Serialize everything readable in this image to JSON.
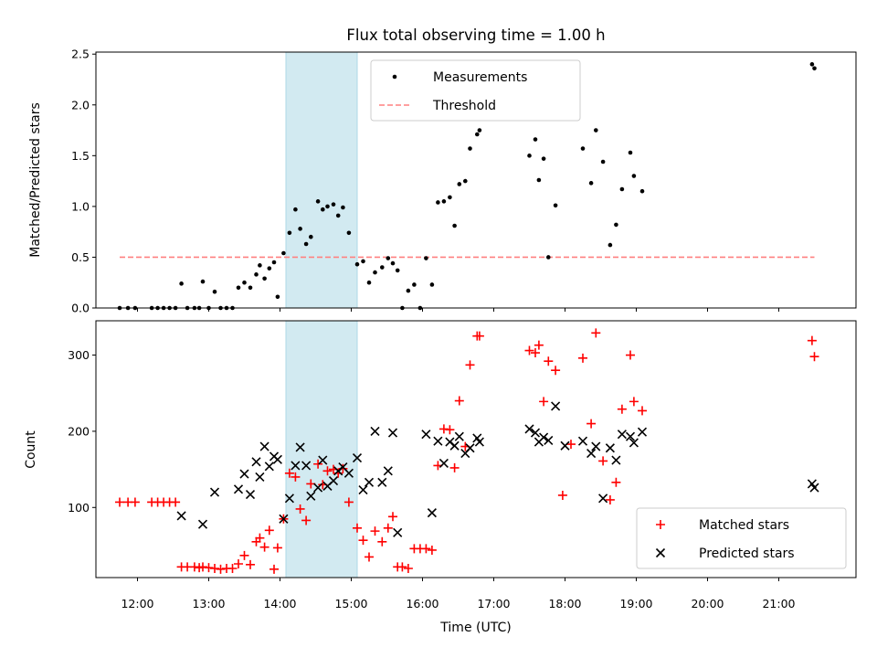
{
  "chart_data": {
    "title": "Flux total observing time = 1.00 h",
    "xlabel": "Time (UTC)",
    "x_ticks": [
      "12:00",
      "13:00",
      "14:00",
      "15:00",
      "16:00",
      "17:00",
      "18:00",
      "19:00",
      "20:00",
      "21:00"
    ],
    "x_range": [
      "11:25",
      "22:05"
    ],
    "highlight_span": [
      "14:05",
      "15:05"
    ],
    "highlight_color": "#add8e6",
    "panels": [
      {
        "type": "scatter",
        "ylabel": "Matched/Predicted stars",
        "ylim": [
          0,
          2.52
        ],
        "y_ticks": [
          "0.0",
          "0.5",
          "1.0",
          "1.5",
          "2.0",
          "2.5"
        ],
        "y_tick_values": [
          0,
          0.5,
          1.0,
          1.5,
          2.0,
          2.5
        ],
        "legend": {
          "placement": "upper center",
          "entries": [
            "Measurements",
            "Threshold"
          ]
        },
        "threshold": {
          "name": "Threshold",
          "y": 0.5,
          "x_range": [
            "11:45",
            "21:30"
          ],
          "color": "#ff8080",
          "style": "dashed"
        },
        "series": [
          {
            "name": "Measurements",
            "marker": "dot",
            "color": "#000000",
            "points": [
              [
                "11:45",
                0
              ],
              [
                "11:52",
                0
              ],
              [
                "11:58",
                0
              ],
              [
                "12:12",
                0
              ],
              [
                "12:17",
                0
              ],
              [
                "12:22",
                0
              ],
              [
                "12:27",
                0
              ],
              [
                "12:32",
                0
              ],
              [
                "12:37",
                0.24
              ],
              [
                "12:42",
                0
              ],
              [
                "12:48",
                0
              ],
              [
                "12:52",
                0
              ],
              [
                "12:55",
                0.26
              ],
              [
                "13:00",
                0
              ],
              [
                "13:05",
                0.16
              ],
              [
                "13:10",
                0
              ],
              [
                "13:15",
                0
              ],
              [
                "13:20",
                0
              ],
              [
                "13:25",
                0.2
              ],
              [
                "13:30",
                0.25
              ],
              [
                "13:35",
                0.2
              ],
              [
                "13:40",
                0.33
              ],
              [
                "13:43",
                0.42
              ],
              [
                "13:47",
                0.29
              ],
              [
                "13:51",
                0.39
              ],
              [
                "13:55",
                0.45
              ],
              [
                "13:58",
                0.11
              ],
              [
                "14:03",
                0.54
              ],
              [
                "14:08",
                0.74
              ],
              [
                "14:13",
                0.97
              ],
              [
                "14:17",
                0.78
              ],
              [
                "14:22",
                0.63
              ],
              [
                "14:26",
                0.7
              ],
              [
                "14:32",
                1.05
              ],
              [
                "14:36",
                0.97
              ],
              [
                "14:40",
                1.0
              ],
              [
                "14:45",
                1.02
              ],
              [
                "14:49",
                0.91
              ],
              [
                "14:53",
                0.99
              ],
              [
                "14:58",
                0.74
              ],
              [
                "15:05",
                0.43
              ],
              [
                "15:10",
                0.46
              ],
              [
                "15:15",
                0.25
              ],
              [
                "15:20",
                0.35
              ],
              [
                "15:26",
                0.4
              ],
              [
                "15:31",
                0.49
              ],
              [
                "15:35",
                0.44
              ],
              [
                "15:39",
                0.37
              ],
              [
                "15:43",
                0
              ],
              [
                "15:48",
                0.17
              ],
              [
                "15:53",
                0.23
              ],
              [
                "15:58",
                0
              ],
              [
                "16:03",
                0.49
              ],
              [
                "16:08",
                0.23
              ],
              [
                "16:13",
                1.04
              ],
              [
                "16:18",
                1.05
              ],
              [
                "16:23",
                1.09
              ],
              [
                "16:27",
                0.81
              ],
              [
                "16:31",
                1.22
              ],
              [
                "16:36",
                1.25
              ],
              [
                "16:40",
                1.57
              ],
              [
                "16:46",
                1.71
              ],
              [
                "16:48",
                1.75
              ],
              [
                "17:30",
                1.5
              ],
              [
                "17:35",
                1.66
              ],
              [
                "17:38",
                1.26
              ],
              [
                "17:42",
                1.47
              ],
              [
                "17:46",
                0.5
              ],
              [
                "17:52",
                1.01
              ],
              [
                "18:15",
                1.57
              ],
              [
                "18:22",
                1.23
              ],
              [
                "18:26",
                1.75
              ],
              [
                "18:32",
                1.44
              ],
              [
                "18:38",
                0.62
              ],
              [
                "18:43",
                0.82
              ],
              [
                "18:48",
                1.17
              ],
              [
                "18:55",
                1.53
              ],
              [
                "18:58",
                1.3
              ],
              [
                "19:05",
                1.15
              ],
              [
                "21:28",
                2.4
              ],
              [
                "21:30",
                2.36
              ]
            ]
          }
        ]
      },
      {
        "type": "scatter",
        "ylabel": "Count",
        "ylim": [
          8,
          345
        ],
        "y_ticks": [
          "100",
          "200",
          "300"
        ],
        "y_tick_values": [
          100,
          200,
          300
        ],
        "legend": {
          "placement": "lower right",
          "entries": [
            "Matched stars",
            "Predicted stars"
          ]
        },
        "series": [
          {
            "name": "Matched stars",
            "marker": "plus",
            "color": "#ff0000",
            "points": [
              [
                "11:45",
                107
              ],
              [
                "11:52",
                107
              ],
              [
                "11:58",
                107
              ],
              [
                "12:12",
                107
              ],
              [
                "12:17",
                107
              ],
              [
                "12:22",
                107
              ],
              [
                "12:27",
                107
              ],
              [
                "12:32",
                107
              ],
              [
                "12:37",
                22
              ],
              [
                "12:42",
                22
              ],
              [
                "12:48",
                22
              ],
              [
                "12:52",
                21
              ],
              [
                "12:55",
                22
              ],
              [
                "13:00",
                21
              ],
              [
                "13:05",
                20
              ],
              [
                "13:10",
                19
              ],
              [
                "13:15",
                20
              ],
              [
                "13:20",
                20
              ],
              [
                "13:25",
                26
              ],
              [
                "13:30",
                37
              ],
              [
                "13:35",
                25
              ],
              [
                "13:40",
                55
              ],
              [
                "13:43",
                60
              ],
              [
                "13:47",
                48
              ],
              [
                "13:51",
                70
              ],
              [
                "13:55",
                19
              ],
              [
                "13:58",
                47
              ],
              [
                "14:03",
                85
              ],
              [
                "14:08",
                145
              ],
              [
                "14:13",
                140
              ],
              [
                "14:17",
                98
              ],
              [
                "14:22",
                83
              ],
              [
                "14:26",
                131
              ],
              [
                "14:32",
                157
              ],
              [
                "14:36",
                130
              ],
              [
                "14:40",
                148
              ],
              [
                "14:45",
                150
              ],
              [
                "14:49",
                145
              ],
              [
                "14:53",
                151
              ],
              [
                "14:58",
                107
              ],
              [
                "15:05",
                73
              ],
              [
                "15:10",
                57
              ],
              [
                "15:15",
                35
              ],
              [
                "15:20",
                69
              ],
              [
                "15:26",
                55
              ],
              [
                "15:31",
                73
              ],
              [
                "15:35",
                88
              ],
              [
                "15:39",
                22
              ],
              [
                "15:43",
                22
              ],
              [
                "15:48",
                20
              ],
              [
                "15:53",
                46
              ],
              [
                "15:58",
                46
              ],
              [
                "16:03",
                46
              ],
              [
                "16:08",
                44
              ],
              [
                "16:13",
                155
              ],
              [
                "16:18",
                203
              ],
              [
                "16:23",
                202
              ],
              [
                "16:27",
                152
              ],
              [
                "16:31",
                240
              ],
              [
                "16:36",
                180
              ],
              [
                "16:40",
                287
              ],
              [
                "16:46",
                325
              ],
              [
                "16:48",
                325
              ],
              [
                "17:30",
                306
              ],
              [
                "17:35",
                303
              ],
              [
                "17:38",
                313
              ],
              [
                "17:42",
                239
              ],
              [
                "17:46",
                292
              ],
              [
                "17:52",
                280
              ],
              [
                "17:58",
                116
              ],
              [
                "18:05",
                183
              ],
              [
                "18:15",
                296
              ],
              [
                "18:22",
                210
              ],
              [
                "18:26",
                329
              ],
              [
                "18:32",
                161
              ],
              [
                "18:38",
                110
              ],
              [
                "18:43",
                133
              ],
              [
                "18:48",
                229
              ],
              [
                "18:55",
                300
              ],
              [
                "18:58",
                239
              ],
              [
                "19:05",
                227
              ],
              [
                "21:28",
                319
              ],
              [
                "21:30",
                298
              ]
            ]
          },
          {
            "name": "Predicted stars",
            "marker": "x",
            "color": "#000000",
            "points": [
              [
                "12:37",
                89
              ],
              [
                "12:55",
                78
              ],
              [
                "13:05",
                120
              ],
              [
                "13:25",
                124
              ],
              [
                "13:30",
                144
              ],
              [
                "13:35",
                117
              ],
              [
                "13:40",
                160
              ],
              [
                "13:43",
                140
              ],
              [
                "13:47",
                180
              ],
              [
                "13:51",
                154
              ],
              [
                "13:55",
                167
              ],
              [
                "13:58",
                163
              ],
              [
                "14:03",
                85
              ],
              [
                "14:08",
                112
              ],
              [
                "14:13",
                155
              ],
              [
                "14:17",
                179
              ],
              [
                "14:22",
                155
              ],
              [
                "14:26",
                115
              ],
              [
                "14:32",
                126
              ],
              [
                "14:36",
                162
              ],
              [
                "14:40",
                128
              ],
              [
                "14:45",
                135
              ],
              [
                "14:49",
                148
              ],
              [
                "14:53",
                153
              ],
              [
                "14:58",
                145
              ],
              [
                "15:05",
                165
              ],
              [
                "15:10",
                123
              ],
              [
                "15:15",
                133
              ],
              [
                "15:20",
                200
              ],
              [
                "15:26",
                133
              ],
              [
                "15:31",
                148
              ],
              [
                "15:35",
                198
              ],
              [
                "15:39",
                67
              ],
              [
                "16:03",
                196
              ],
              [
                "16:08",
                93
              ],
              [
                "16:13",
                187
              ],
              [
                "16:18",
                158
              ],
              [
                "16:23",
                186
              ],
              [
                "16:27",
                181
              ],
              [
                "16:31",
                193
              ],
              [
                "16:36",
                171
              ],
              [
                "16:40",
                178
              ],
              [
                "16:46",
                191
              ],
              [
                "16:48",
                186
              ],
              [
                "17:30",
                203
              ],
              [
                "17:35",
                198
              ],
              [
                "17:38",
                186
              ],
              [
                "17:42",
                192
              ],
              [
                "17:46",
                188
              ],
              [
                "17:52",
                233
              ],
              [
                "18:00",
                181
              ],
              [
                "18:15",
                187
              ],
              [
                "18:22",
                171
              ],
              [
                "18:26",
                180
              ],
              [
                "18:32",
                112
              ],
              [
                "18:38",
                178
              ],
              [
                "18:43",
                162
              ],
              [
                "18:48",
                196
              ],
              [
                "18:55",
                193
              ],
              [
                "18:58",
                185
              ],
              [
                "19:05",
                199
              ],
              [
                "21:28",
                131
              ],
              [
                "21:30",
                126
              ]
            ]
          }
        ]
      }
    ]
  }
}
